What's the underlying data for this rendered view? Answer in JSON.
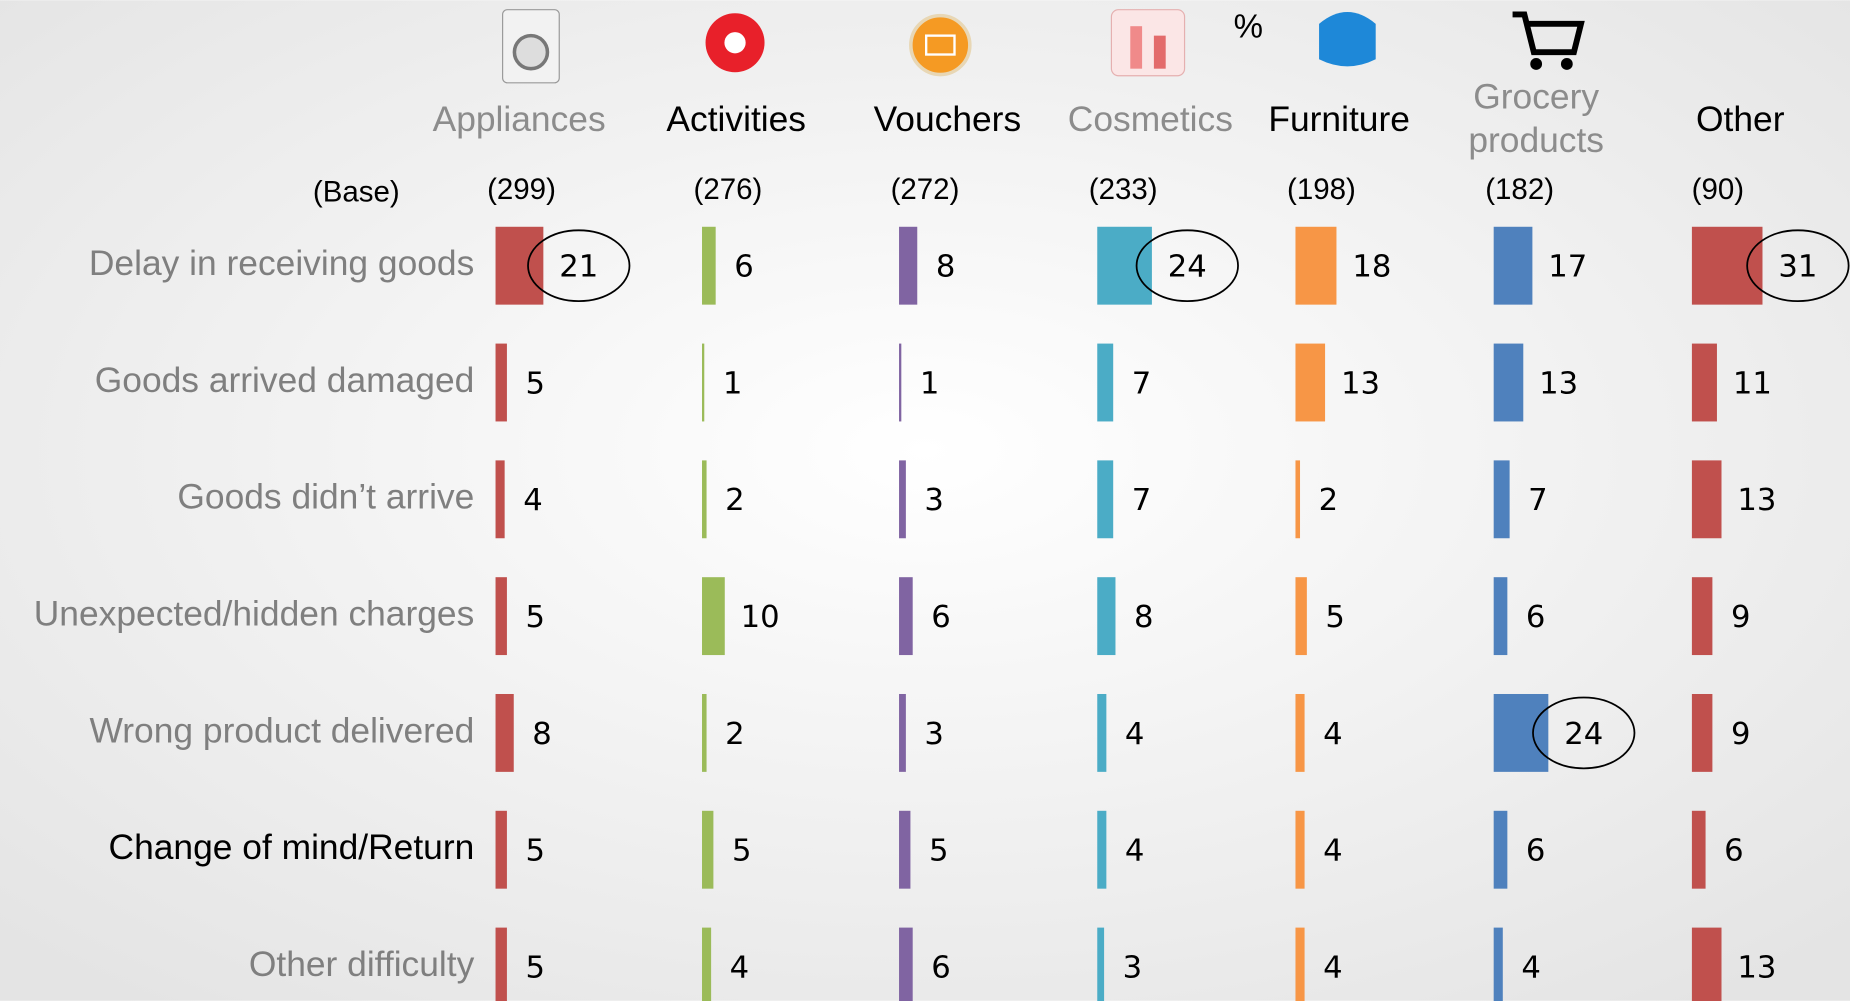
{
  "chart_data": {
    "type": "bar",
    "unit_label": "%",
    "base_label": "(Base)",
    "categories": [
      "Delay in receiving goods",
      "Goods arrived damaged",
      "Goods didn’t arrive",
      "Unexpected/hidden charges",
      "Wrong product delivered",
      "Change of mind/Return",
      "Other difficulty"
    ],
    "category_colors": [
      "#7f7f7f",
      "#7f7f7f",
      "#7f7f7f",
      "#7f7f7f",
      "#7f7f7f",
      "#000000",
      "#7f7f7f"
    ],
    "series": [
      {
        "name": "Appliances",
        "base": "(299)",
        "color": "#c0504d",
        "label_color": "#8c8c8c",
        "circled": [
          0
        ],
        "values": [
          21,
          5,
          4,
          5,
          8,
          5,
          5
        ]
      },
      {
        "name": "Activities",
        "base": "(276)",
        "color": "#9bbb59",
        "label_color": "#000000",
        "circled": [],
        "values": [
          6,
          1,
          2,
          10,
          2,
          5,
          4
        ]
      },
      {
        "name": "Vouchers",
        "base": "(272)",
        "color": "#8064a2",
        "label_color": "#000000",
        "circled": [],
        "values": [
          8,
          1,
          3,
          6,
          3,
          5,
          6
        ]
      },
      {
        "name": "Cosmetics",
        "base": "(233)",
        "color": "#4bacc6",
        "label_color": "#8c8c8c",
        "circled": [
          0
        ],
        "values": [
          24,
          7,
          7,
          8,
          4,
          4,
          3
        ]
      },
      {
        "name": "Furniture",
        "base": "(198)",
        "color": "#f79646",
        "label_color": "#000000",
        "circled": [],
        "values": [
          18,
          13,
          2,
          5,
          4,
          4,
          4
        ]
      },
      {
        "name": "Grocery products",
        "base": "(182)",
        "color": "#4f81bd",
        "label_color": "#8c8c8c",
        "circled": [
          4
        ],
        "values": [
          17,
          13,
          7,
          6,
          24,
          6,
          4
        ]
      },
      {
        "name": "Other",
        "base": "(90)",
        "color": "#c0504d",
        "label_color": "#000000",
        "circled": [
          0
        ],
        "values": [
          31,
          11,
          13,
          9,
          9,
          6,
          13
        ]
      }
    ]
  }
}
